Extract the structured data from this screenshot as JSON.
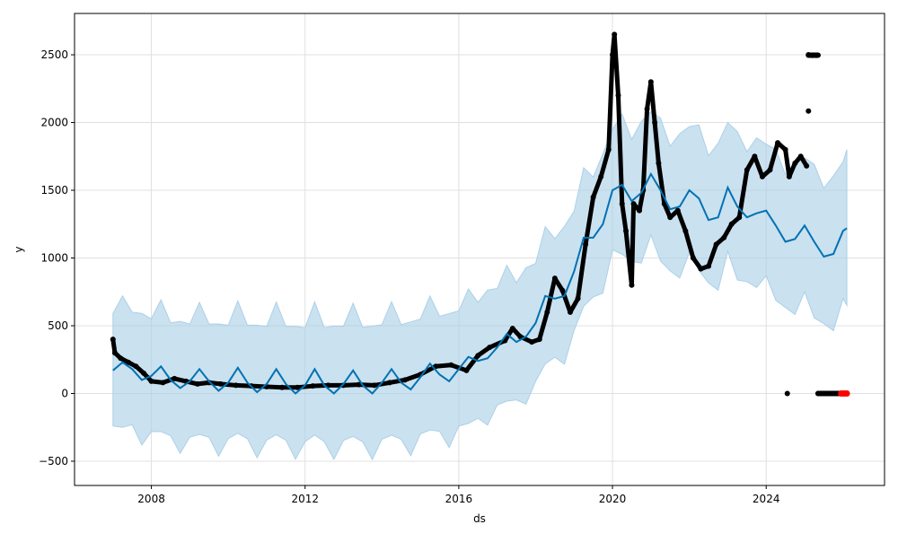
{
  "chart_data": {
    "type": "line",
    "title": "",
    "xlabel": "ds",
    "ylabel": "y",
    "xlim": [
      2006.0,
      2027.08
    ],
    "ylim": [
      -679,
      2805
    ],
    "grid": true,
    "x_ticks": [
      2008,
      2012,
      2016,
      2020,
      2024
    ],
    "x_tick_labels": [
      "2008",
      "2012",
      "2016",
      "2020",
      "2024"
    ],
    "y_ticks": [
      -500,
      0,
      500,
      1000,
      1500,
      2000,
      2500
    ],
    "y_tick_labels": [
      "−500",
      "0",
      "500",
      "1000",
      "1500",
      "2000",
      "2500"
    ],
    "colors": {
      "forecast": "#0072B2",
      "band": "#a6cde6",
      "actual": "#000000",
      "future": "#ff0000",
      "grid": "#e0e0e0"
    },
    "forecast": {
      "name": "yhat",
      "points": [
        [
          2007.0,
          170
        ],
        [
          2007.25,
          230
        ],
        [
          2007.5,
          180
        ],
        [
          2007.75,
          100
        ],
        [
          2008,
          130
        ],
        [
          2008.25,
          200
        ],
        [
          2008.5,
          100
        ],
        [
          2008.75,
          40
        ],
        [
          2009,
          90
        ],
        [
          2009.25,
          180
        ],
        [
          2009.5,
          90
        ],
        [
          2009.75,
          20
        ],
        [
          2010,
          80
        ],
        [
          2010.25,
          190
        ],
        [
          2010.5,
          80
        ],
        [
          2010.75,
          10
        ],
        [
          2011,
          70
        ],
        [
          2011.25,
          180
        ],
        [
          2011.5,
          70
        ],
        [
          2011.75,
          0
        ],
        [
          2012,
          60
        ],
        [
          2012.25,
          180
        ],
        [
          2012.5,
          60
        ],
        [
          2012.75,
          0
        ],
        [
          2013,
          70
        ],
        [
          2013.25,
          170
        ],
        [
          2013.5,
          60
        ],
        [
          2013.75,
          0
        ],
        [
          2014,
          80
        ],
        [
          2014.25,
          180
        ],
        [
          2014.5,
          80
        ],
        [
          2014.75,
          30
        ],
        [
          2015,
          120
        ],
        [
          2015.25,
          220
        ],
        [
          2015.5,
          140
        ],
        [
          2015.75,
          90
        ],
        [
          2016,
          180
        ],
        [
          2016.25,
          270
        ],
        [
          2016.5,
          240
        ],
        [
          2016.75,
          260
        ],
        [
          2017,
          340
        ],
        [
          2017.25,
          440
        ],
        [
          2017.5,
          380
        ],
        [
          2017.75,
          420
        ],
        [
          2018,
          520
        ],
        [
          2018.25,
          720
        ],
        [
          2018.5,
          700
        ],
        [
          2018.75,
          720
        ],
        [
          2019,
          900
        ],
        [
          2019.25,
          1150
        ],
        [
          2019.5,
          1150
        ],
        [
          2019.75,
          1250
        ],
        [
          2020,
          1500
        ],
        [
          2020.25,
          1540
        ],
        [
          2020.5,
          1420
        ],
        [
          2020.75,
          1480
        ],
        [
          2021,
          1620
        ],
        [
          2021.25,
          1500
        ],
        [
          2021.5,
          1360
        ],
        [
          2021.75,
          1380
        ],
        [
          2022,
          1500
        ],
        [
          2022.25,
          1440
        ],
        [
          2022.5,
          1280
        ],
        [
          2022.75,
          1300
        ],
        [
          2023,
          1520
        ],
        [
          2023.25,
          1380
        ],
        [
          2023.5,
          1300
        ],
        [
          2023.75,
          1330
        ],
        [
          2024,
          1350
        ],
        [
          2024.25,
          1240
        ],
        [
          2024.5,
          1120
        ],
        [
          2024.75,
          1140
        ],
        [
          2025,
          1240
        ],
        [
          2025.25,
          1120
        ],
        [
          2025.5,
          1010
        ],
        [
          2025.75,
          1030
        ],
        [
          2026,
          1200
        ],
        [
          2026.1,
          1220
        ]
      ],
      "interval_half_width": [
        [
          2007.0,
          450
        ],
        [
          2016.0,
          460
        ],
        [
          2020.0,
          480
        ],
        [
          2024.0,
          520
        ],
        [
          2026.1,
          540
        ]
      ]
    },
    "actual": [
      [
        2007.0,
        400
      ],
      [
        2007.05,
        300
      ],
      [
        2007.2,
        260
      ],
      [
        2007.4,
        230
      ],
      [
        2007.6,
        200
      ],
      [
        2007.8,
        150
      ],
      [
        2008,
        90
      ],
      [
        2008.3,
        80
      ],
      [
        2008.6,
        110
      ],
      [
        2008.9,
        90
      ],
      [
        2009.2,
        70
      ],
      [
        2009.5,
        80
      ],
      [
        2009.8,
        70
      ],
      [
        2010.2,
        60
      ],
      [
        2010.6,
        55
      ],
      [
        2011,
        50
      ],
      [
        2011.4,
        45
      ],
      [
        2011.8,
        45
      ],
      [
        2012.2,
        55
      ],
      [
        2012.6,
        60
      ],
      [
        2013,
        60
      ],
      [
        2013.4,
        65
      ],
      [
        2013.8,
        60
      ],
      [
        2014.2,
        80
      ],
      [
        2014.6,
        100
      ],
      [
        2015,
        140
      ],
      [
        2015.4,
        200
      ],
      [
        2015.8,
        210
      ],
      [
        2016.2,
        170
      ],
      [
        2016.5,
        280
      ],
      [
        2016.8,
        340
      ],
      [
        2017.2,
        390
      ],
      [
        2017.4,
        480
      ],
      [
        2017.6,
        420
      ],
      [
        2017.9,
        380
      ],
      [
        2018.1,
        400
      ],
      [
        2018.3,
        600
      ],
      [
        2018.5,
        850
      ],
      [
        2018.7,
        760
      ],
      [
        2018.9,
        600
      ],
      [
        2019.1,
        700
      ],
      [
        2019.3,
        1100
      ],
      [
        2019.5,
        1450
      ],
      [
        2019.7,
        1600
      ],
      [
        2019.9,
        1800
      ],
      [
        2020.0,
        2500
      ],
      [
        2020.05,
        2650
      ],
      [
        2020.15,
        2200
      ],
      [
        2020.25,
        1400
      ],
      [
        2020.35,
        1200
      ],
      [
        2020.5,
        800
      ],
      [
        2020.55,
        1400
      ],
      [
        2020.7,
        1350
      ],
      [
        2020.8,
        1500
      ],
      [
        2020.9,
        2100
      ],
      [
        2021.0,
        2300
      ],
      [
        2021.1,
        2000
      ],
      [
        2021.2,
        1700
      ],
      [
        2021.35,
        1400
      ],
      [
        2021.5,
        1300
      ],
      [
        2021.7,
        1350
      ],
      [
        2021.9,
        1200
      ],
      [
        2022.1,
        1000
      ],
      [
        2022.3,
        920
      ],
      [
        2022.5,
        940
      ],
      [
        2022.7,
        1100
      ],
      [
        2022.9,
        1150
      ],
      [
        2023.1,
        1250
      ],
      [
        2023.3,
        1300
      ],
      [
        2023.5,
        1650
      ],
      [
        2023.7,
        1750
      ],
      [
        2023.9,
        1600
      ],
      [
        2024.1,
        1650
      ],
      [
        2024.3,
        1850
      ],
      [
        2024.5,
        1800
      ],
      [
        2024.6,
        1600
      ],
      [
        2024.75,
        1700
      ],
      [
        2024.9,
        1750
      ],
      [
        2025.05,
        1680
      ]
    ],
    "actual_outliers": [
      [
        2024.55,
        0
      ],
      [
        2025.1,
        2085
      ],
      [
        2025.1,
        2500
      ],
      [
        2025.2,
        2495
      ],
      [
        2025.3,
        2495
      ],
      [
        2025.35,
        0
      ],
      [
        2025.45,
        0
      ],
      [
        2025.55,
        0
      ],
      [
        2025.65,
        0
      ],
      [
        2025.75,
        0
      ],
      [
        2025.85,
        0
      ]
    ],
    "future_points": [
      [
        2025.95,
        0
      ],
      [
        2026.0,
        0
      ],
      [
        2026.05,
        0
      ],
      [
        2026.1,
        0
      ]
    ]
  }
}
